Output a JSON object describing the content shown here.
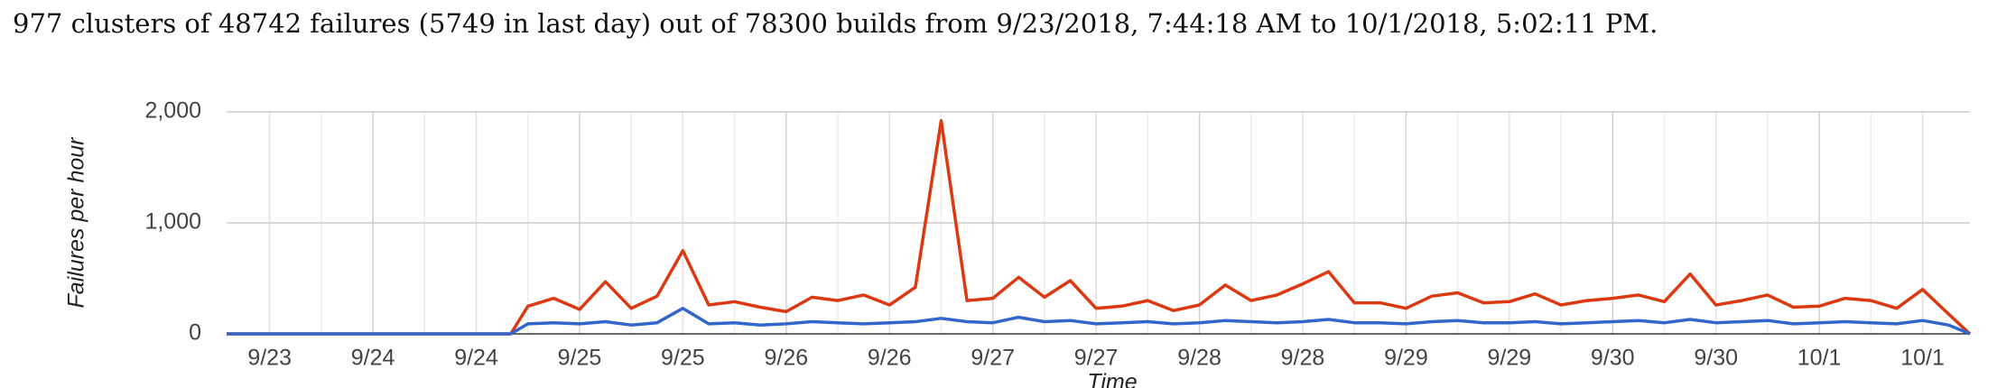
{
  "chart_data": {
    "type": "line",
    "title": "977 clusters of 48742 failures (5749 in last day) out of 78300 builds from 9/23/2018, 7:44:18 AM to 10/1/2018, 5:02:11 PM.",
    "xlabel": "Time",
    "ylabel": "Failures per hour",
    "x": [
      -5,
      28,
      30,
      33,
      36,
      39,
      42,
      45,
      48,
      51,
      54,
      57,
      60,
      63,
      66,
      69,
      72,
      75,
      78,
      81,
      84,
      87,
      90,
      93,
      96,
      99,
      102,
      105,
      108,
      111,
      114,
      117,
      120,
      123,
      126,
      129,
      132,
      135,
      138,
      141,
      144,
      147,
      150,
      153,
      156,
      159,
      162,
      165,
      168,
      171,
      174,
      177,
      180,
      183,
      186,
      189,
      192,
      195,
      197.5
    ],
    "series": [
      {
        "color": "#dc3912",
        "values": [
          0,
          0,
          250,
          320,
          220,
          470,
          230,
          340,
          750,
          260,
          290,
          240,
          200,
          330,
          300,
          350,
          260,
          420,
          1920,
          300,
          320,
          510,
          330,
          480,
          230,
          250,
          300,
          210,
          260,
          440,
          300,
          350,
          450,
          560,
          280,
          280,
          230,
          340,
          370,
          280,
          290,
          360,
          260,
          300,
          320,
          350,
          290,
          540,
          260,
          300,
          350,
          240,
          250,
          320,
          300,
          230,
          400,
          180,
          0
        ]
      },
      {
        "color": "#3366cc",
        "values": [
          0,
          0,
          90,
          100,
          90,
          110,
          80,
          100,
          230,
          90,
          100,
          80,
          90,
          110,
          100,
          90,
          100,
          110,
          140,
          110,
          100,
          150,
          110,
          120,
          90,
          100,
          110,
          90,
          100,
          120,
          110,
          100,
          110,
          130,
          100,
          100,
          90,
          110,
          120,
          100,
          100,
          110,
          90,
          100,
          110,
          120,
          100,
          130,
          100,
          110,
          120,
          90,
          100,
          110,
          100,
          90,
          120,
          80,
          0
        ]
      }
    ],
    "xlim": [
      -5,
      197.5
    ],
    "xticks": [
      {
        "value": 0,
        "label": "9/23"
      },
      {
        "value": 12,
        "label": "9/24"
      },
      {
        "value": 24,
        "label": "9/24"
      },
      {
        "value": 36,
        "label": "9/25"
      },
      {
        "value": 48,
        "label": "9/25"
      },
      {
        "value": 60,
        "label": "9/26"
      },
      {
        "value": 72,
        "label": "9/26"
      },
      {
        "value": 84,
        "label": "9/27"
      },
      {
        "value": 96,
        "label": "9/27"
      },
      {
        "value": 108,
        "label": "9/28"
      },
      {
        "value": 120,
        "label": "9/28"
      },
      {
        "value": 132,
        "label": "9/29"
      },
      {
        "value": 144,
        "label": "9/29"
      },
      {
        "value": 156,
        "label": "9/30"
      },
      {
        "value": 168,
        "label": "9/30"
      },
      {
        "value": 180,
        "label": "10/1"
      },
      {
        "value": 192,
        "label": "10/1"
      }
    ],
    "ylim": [
      0,
      2000
    ],
    "yticks": [
      0,
      {
        "value": 1000,
        "label": "1,000"
      },
      {
        "value": 2000,
        "label": "2,000"
      }
    ],
    "grid": true
  }
}
